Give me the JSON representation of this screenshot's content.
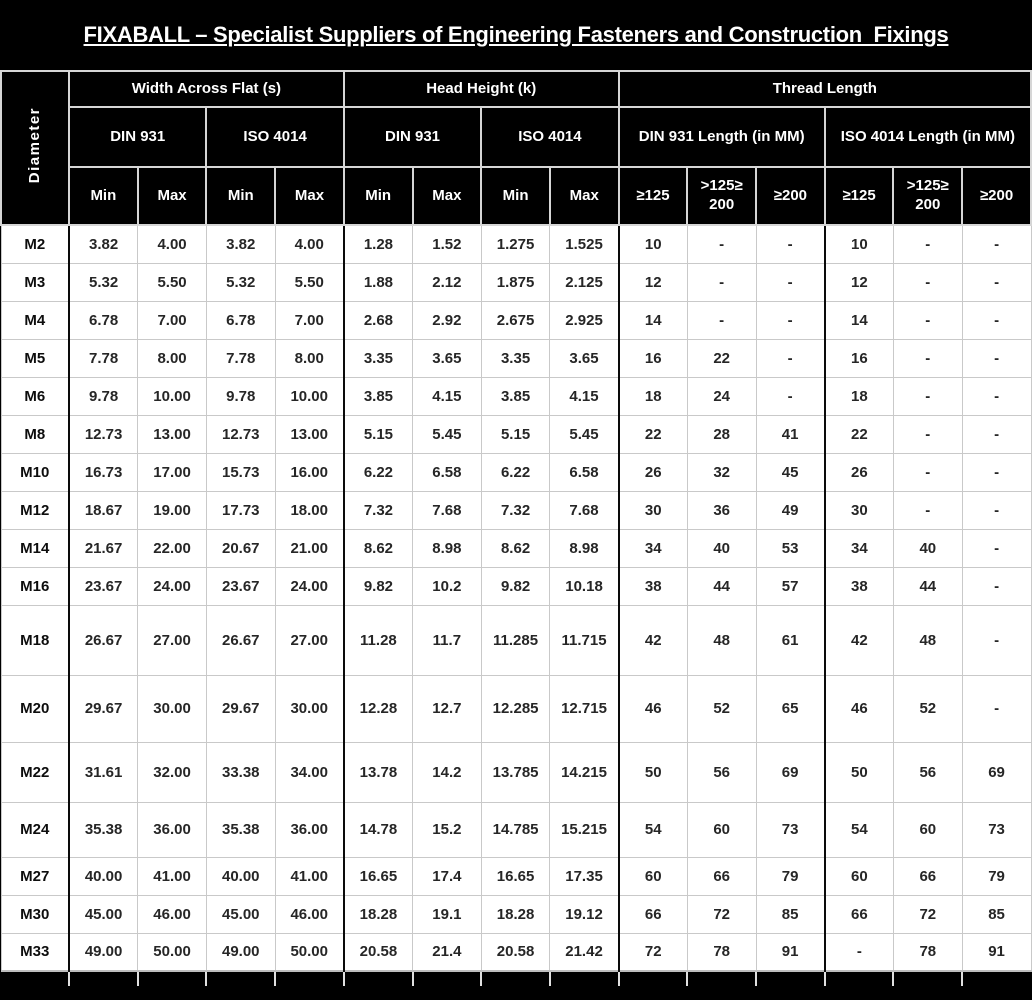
{
  "title": "FIXABALL – Specialist Suppliers of Engineering Fasteners and Construction  Fixings",
  "table": {
    "corner_label": "Diameter",
    "groups": [
      {
        "label": "Width Across Flat (s)",
        "standards": [
          {
            "label": "DIN 931",
            "cols": [
              "Min",
              "Max"
            ]
          },
          {
            "label": "ISO 4014",
            "cols": [
              "Min",
              "Max"
            ]
          }
        ]
      },
      {
        "label": "Head Height (k)",
        "standards": [
          {
            "label": "DIN 931",
            "cols": [
              "Min",
              "Max"
            ]
          },
          {
            "label": "ISO 4014",
            "cols": [
              "Min",
              "Max"
            ]
          }
        ]
      },
      {
        "label": "Thread Length",
        "standards": [
          {
            "label": "DIN 931 Length (in MM)",
            "cols": [
              "≥125",
              ">125≥ 200",
              "≥200"
            ]
          },
          {
            "label": "ISO 4014 Length (in MM)",
            "cols": [
              "≥125",
              ">125≥ 200",
              "≥200"
            ]
          }
        ]
      }
    ],
    "rows": [
      {
        "diameter": "M2",
        "values": [
          "3.82",
          "4.00",
          "3.82",
          "4.00",
          "1.28",
          "1.52",
          "1.275",
          "1.525",
          "10",
          "-",
          "-",
          "10",
          "-",
          "-"
        ]
      },
      {
        "diameter": "M3",
        "values": [
          "5.32",
          "5.50",
          "5.32",
          "5.50",
          "1.88",
          "2.12",
          "1.875",
          "2.125",
          "12",
          "-",
          "-",
          "12",
          "-",
          "-"
        ]
      },
      {
        "diameter": "M4",
        "values": [
          "6.78",
          "7.00",
          "6.78",
          "7.00",
          "2.68",
          "2.92",
          "2.675",
          "2.925",
          "14",
          "-",
          "-",
          "14",
          "-",
          "-"
        ]
      },
      {
        "diameter": "M5",
        "values": [
          "7.78",
          "8.00",
          "7.78",
          "8.00",
          "3.35",
          "3.65",
          "3.35",
          "3.65",
          "16",
          "22",
          "-",
          "16",
          "-",
          "-"
        ]
      },
      {
        "diameter": "M6",
        "values": [
          "9.78",
          "10.00",
          "9.78",
          "10.00",
          "3.85",
          "4.15",
          "3.85",
          "4.15",
          "18",
          "24",
          "-",
          "18",
          "-",
          "-"
        ]
      },
      {
        "diameter": "M8",
        "values": [
          "12.73",
          "13.00",
          "12.73",
          "13.00",
          "5.15",
          "5.45",
          "5.15",
          "5.45",
          "22",
          "28",
          "41",
          "22",
          "-",
          "-"
        ]
      },
      {
        "diameter": "M10",
        "values": [
          "16.73",
          "17.00",
          "15.73",
          "16.00",
          "6.22",
          "6.58",
          "6.22",
          "6.58",
          "26",
          "32",
          "45",
          "26",
          "-",
          "-"
        ]
      },
      {
        "diameter": "M12",
        "values": [
          "18.67",
          "19.00",
          "17.73",
          "18.00",
          "7.32",
          "7.68",
          "7.32",
          "7.68",
          "30",
          "36",
          "49",
          "30",
          "-",
          "-"
        ]
      },
      {
        "diameter": "M14",
        "values": [
          "21.67",
          "22.00",
          "20.67",
          "21.00",
          "8.62",
          "8.98",
          "8.62",
          "8.98",
          "34",
          "40",
          "53",
          "34",
          "40",
          "-"
        ]
      },
      {
        "diameter": "M16",
        "values": [
          "23.67",
          "24.00",
          "23.67",
          "24.00",
          "9.82",
          "10.2",
          "9.82",
          "10.18",
          "38",
          "44",
          "57",
          "38",
          "44",
          "-"
        ]
      },
      {
        "diameter": "M18",
        "values": [
          "26.67",
          "27.00",
          "26.67",
          "27.00",
          "11.28",
          "11.7",
          "11.285",
          "11.715",
          "42",
          "48",
          "61",
          "42",
          "48",
          "-"
        ]
      },
      {
        "diameter": "M20",
        "values": [
          "29.67",
          "30.00",
          "29.67",
          "30.00",
          "12.28",
          "12.7",
          "12.285",
          "12.715",
          "46",
          "52",
          "65",
          "46",
          "52",
          "-"
        ]
      },
      {
        "diameter": "M22",
        "values": [
          "31.61",
          "32.00",
          "33.38",
          "34.00",
          "13.78",
          "14.2",
          "13.785",
          "14.215",
          "50",
          "56",
          "69",
          "50",
          "56",
          "69"
        ]
      },
      {
        "diameter": "M24",
        "values": [
          "35.38",
          "36.00",
          "35.38",
          "36.00",
          "14.78",
          "15.2",
          "14.785",
          "15.215",
          "54",
          "60",
          "73",
          "54",
          "60",
          "73"
        ]
      },
      {
        "diameter": "M27",
        "values": [
          "40.00",
          "41.00",
          "40.00",
          "41.00",
          "16.65",
          "17.4",
          "16.65",
          "17.35",
          "60",
          "66",
          "79",
          "60",
          "66",
          "79"
        ]
      },
      {
        "diameter": "M30",
        "values": [
          "45.00",
          "46.00",
          "45.00",
          "46.00",
          "18.28",
          "19.1",
          "18.28",
          "19.12",
          "66",
          "72",
          "85",
          "66",
          "72",
          "85"
        ]
      },
      {
        "diameter": "M33",
        "values": [
          "49.00",
          "50.00",
          "49.00",
          "50.00",
          "20.58",
          "21.4",
          "20.58",
          "21.42",
          "72",
          "78",
          "91",
          "-",
          "78",
          "91"
        ]
      }
    ]
  }
}
